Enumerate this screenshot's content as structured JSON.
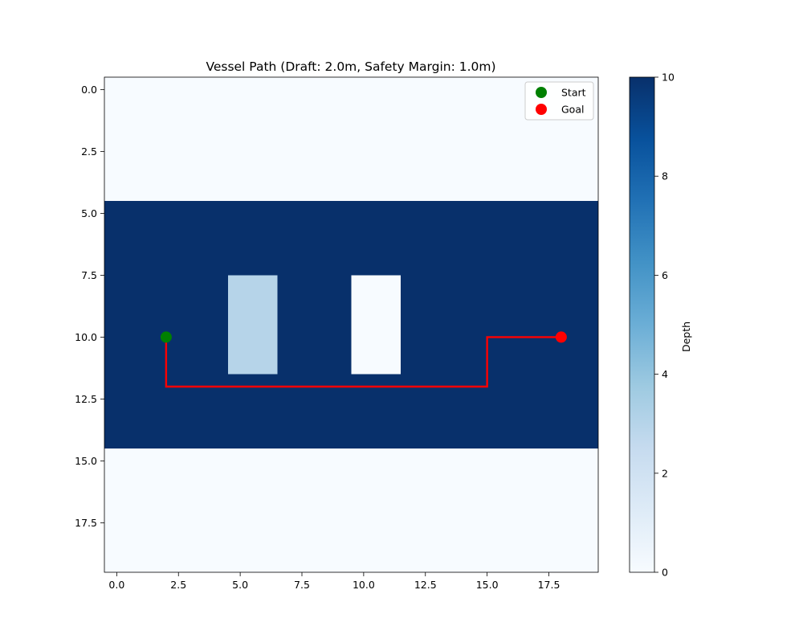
{
  "chart_data": {
    "type": "heatmap",
    "title": "Vessel Path (Draft: 2.0m, Safety Margin: 1.0m)",
    "xlabel": "",
    "ylabel": "",
    "grid": false,
    "colormap": "Blues",
    "grid_size": [
      20,
      20
    ],
    "depth_regions": [
      {
        "rows": [
          0,
          4
        ],
        "cols": [
          0,
          19
        ],
        "depth": 0
      },
      {
        "rows": [
          5,
          14
        ],
        "cols": [
          0,
          19
        ],
        "depth": 10
      },
      {
        "rows": [
          15,
          19
        ],
        "cols": [
          0,
          19
        ],
        "depth": 0
      },
      {
        "rows": [
          8,
          11
        ],
        "cols": [
          5,
          6
        ],
        "depth": 3
      },
      {
        "rows": [
          8,
          11
        ],
        "cols": [
          10,
          11
        ],
        "depth": 0
      }
    ],
    "xlim": [
      -0.5,
      19.5
    ],
    "ylim": [
      19.5,
      -0.5
    ],
    "x_ticks": [
      0,
      2.5,
      5,
      7.5,
      10,
      12.5,
      15,
      17.5
    ],
    "x_tick_labels": [
      "0.0",
      "2.5",
      "5.0",
      "7.5",
      "10.0",
      "12.5",
      "15.0",
      "17.5"
    ],
    "y_ticks": [
      0,
      2.5,
      5,
      7.5,
      10,
      12.5,
      15,
      17.5
    ],
    "y_tick_labels": [
      "0.0",
      "2.5",
      "5.0",
      "7.5",
      "10.0",
      "12.5",
      "15.0",
      "17.5"
    ],
    "path": {
      "color": "#ff0000",
      "points": [
        [
          2,
          10
        ],
        [
          2,
          11
        ],
        [
          2,
          12
        ],
        [
          3,
          12
        ],
        [
          4,
          12
        ],
        [
          5,
          12
        ],
        [
          6,
          12
        ],
        [
          7,
          12
        ],
        [
          8,
          12
        ],
        [
          9,
          12
        ],
        [
          10,
          12
        ],
        [
          11,
          12
        ],
        [
          12,
          12
        ],
        [
          13,
          12
        ],
        [
          14,
          12
        ],
        [
          15,
          12
        ],
        [
          15,
          11
        ],
        [
          15,
          10
        ],
        [
          16,
          10
        ],
        [
          17,
          10
        ],
        [
          18,
          10
        ]
      ]
    },
    "markers": [
      {
        "name": "Start",
        "x": 2,
        "y": 10,
        "color": "#008000"
      },
      {
        "name": "Goal",
        "x": 18,
        "y": 10,
        "color": "#ff0000"
      }
    ],
    "legend": {
      "placement": "top-right",
      "entries": [
        "Start",
        "Goal"
      ]
    },
    "colorbar": {
      "label": "Depth",
      "range": [
        0,
        10
      ],
      "ticks": [
        0,
        2,
        4,
        6,
        8,
        10
      ],
      "tick_labels": [
        "0",
        "2",
        "4",
        "6",
        "8",
        "10"
      ]
    }
  }
}
